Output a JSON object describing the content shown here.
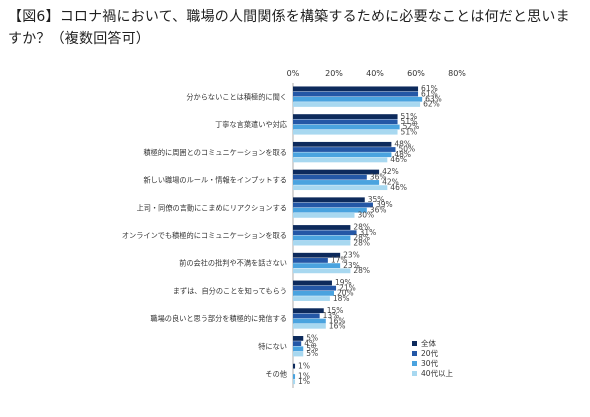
{
  "title": "【図6】コロナ禍において、職場の人間関係を構築するために必要なことは何だと思いますか？（複数回答可）",
  "chart_data": {
    "type": "bar",
    "orientation": "horizontal",
    "xlim": [
      0,
      80
    ],
    "x_ticks": [
      "0%",
      "20%",
      "40%",
      "60%",
      "80%"
    ],
    "categories": [
      "分からないことは積極的に聞く",
      "丁寧な言葉遣いや対応",
      "積極的に周囲とのコミュニケーションを取る",
      "新しい職場のルール・情報をインプットする",
      "上司・同僚の言動にこまめにリアクションする",
      "オンラインでも積極的にコミュニケーションを取る",
      "前の会社の批判や不満を話さない",
      "まずは、自分のことを知ってもらう",
      "職場の良いと思う部分を積極的に発信する",
      "特にない",
      "その他"
    ],
    "series": [
      {
        "name": "全体",
        "color": "#0d2a5c",
        "values": [
          61,
          51,
          48,
          42,
          35,
          28,
          23,
          19,
          15,
          5,
          1
        ]
      },
      {
        "name": "20代",
        "color": "#2457a6",
        "values": [
          61,
          51,
          50,
          36,
          39,
          31,
          17,
          21,
          13,
          4,
          0
        ]
      },
      {
        "name": "30代",
        "color": "#4aa3df",
        "values": [
          63,
          52,
          48,
          42,
          36,
          28,
          23,
          20,
          16,
          5,
          1
        ]
      },
      {
        "name": "40代以上",
        "color": "#a8d8f0",
        "values": [
          62,
          51,
          46,
          46,
          30,
          28,
          28,
          18,
          16,
          5,
          1
        ]
      }
    ],
    "data_labels": [
      [
        "61%",
        "61%",
        "63%",
        "62%"
      ],
      [
        "51%",
        "51%",
        "52%",
        "51%"
      ],
      [
        "48%",
        "50%",
        "48%",
        "46%"
      ],
      [
        "42%",
        "36%",
        "42%",
        "46%"
      ],
      [
        "35%",
        "39%",
        "36%",
        "30%"
      ],
      [
        "28%",
        "31%",
        "28%",
        "28%"
      ],
      [
        "23%",
        "17%",
        "23%",
        "28%"
      ],
      [
        "19%",
        "21%",
        "20%",
        "18%"
      ],
      [
        "15%",
        "13%",
        "16%",
        "16%"
      ],
      [
        "5%",
        "4%",
        "5%",
        "5%"
      ],
      [
        "1%",
        "",
        "1%",
        "1%"
      ]
    ],
    "legend_position": "bottom-right"
  }
}
